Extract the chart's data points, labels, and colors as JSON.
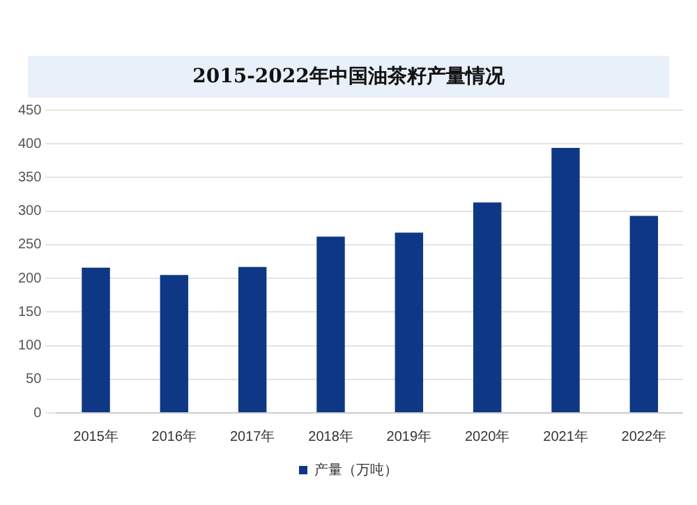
{
  "chart_data": {
    "type": "bar",
    "title": "2015-2022年中国油茶籽产量情况",
    "categories": [
      "2015年",
      "2016年",
      "2017年",
      "2018年",
      "2019年",
      "2020年",
      "2021年",
      "2022年"
    ],
    "series": [
      {
        "name": "产量（万吨）",
        "color": "#0e3885",
        "values": [
          216,
          205,
          217,
          262,
          268,
          313,
          394,
          293
        ]
      }
    ],
    "ylim": [
      0,
      450
    ],
    "yticks": [
      0,
      50,
      100,
      150,
      200,
      250,
      300,
      350,
      400,
      450
    ],
    "grid": "y",
    "legend": "bottom"
  }
}
